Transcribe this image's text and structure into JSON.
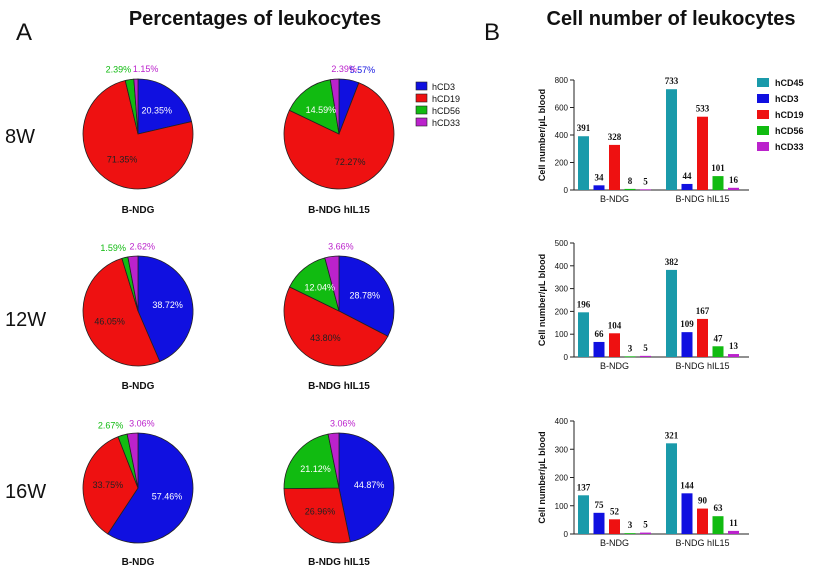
{
  "panel_a": {
    "letter": "A",
    "title": "Percentages of leukocytes",
    "time_labels": [
      "8W",
      "12W",
      "16W"
    ],
    "group_labels": [
      "B-NDG",
      "B-NDG hIL15"
    ],
    "legend": [
      {
        "name": "hCD3",
        "color": "#1010e0"
      },
      {
        "name": "hCD19",
        "color": "#ee1111"
      },
      {
        "name": "hCD56",
        "color": "#11bb11"
      },
      {
        "name": "hCD33",
        "color": "#bb22cc"
      }
    ]
  },
  "panel_b": {
    "letter": "B",
    "title": "Cell number of leukocytes",
    "ylabel": "Cell number/μL blood",
    "legend": [
      {
        "name": "hCD45",
        "color": "#1a9aaa"
      },
      {
        "name": "hCD3",
        "color": "#1010e0"
      },
      {
        "name": "hCD19",
        "color": "#ee1111"
      },
      {
        "name": "hCD56",
        "color": "#11bb11"
      },
      {
        "name": "hCD33",
        "color": "#bb22cc"
      }
    ]
  },
  "chart_data": [
    {
      "type": "pie",
      "title": "8W",
      "group": "B-NDG",
      "categories": [
        "hCD3",
        "hCD19",
        "hCD56",
        "hCD33"
      ],
      "values": [
        20.35,
        71.35,
        2.39,
        1.15
      ],
      "labels": [
        "20.35%",
        "71.35%",
        "2.39%",
        "1.15%"
      ]
    },
    {
      "type": "pie",
      "title": "8W",
      "group": "B-NDG hIL15",
      "categories": [
        "hCD3",
        "hCD19",
        "hCD56",
        "hCD33"
      ],
      "values": [
        5.57,
        72.27,
        14.59,
        2.39
      ],
      "labels": [
        "5.57%",
        "72.27%",
        "14.59%",
        "2.39%"
      ]
    },
    {
      "type": "pie",
      "title": "12W",
      "group": "B-NDG",
      "categories": [
        "hCD3",
        "hCD19",
        "hCD56",
        "hCD33"
      ],
      "values": [
        38.72,
        46.05,
        1.59,
        2.62
      ],
      "labels": [
        "38.72%",
        "46.05%",
        "1.59%",
        "2.62%"
      ]
    },
    {
      "type": "pie",
      "title": "12W",
      "group": "B-NDG hIL15",
      "categories": [
        "hCD3",
        "hCD19",
        "hCD56",
        "hCD33"
      ],
      "values": [
        28.78,
        43.8,
        12.04,
        3.66
      ],
      "labels": [
        "28.78%",
        "43.80%",
        "12.04%",
        "3.66%"
      ]
    },
    {
      "type": "pie",
      "title": "16W",
      "group": "B-NDG",
      "categories": [
        "hCD3",
        "hCD19",
        "hCD56",
        "hCD33"
      ],
      "values": [
        57.46,
        33.75,
        2.67,
        3.06
      ],
      "labels": [
        "57.46%",
        "33.75%",
        "2.67%",
        "3.06%"
      ]
    },
    {
      "type": "pie",
      "title": "16W",
      "group": "B-NDG hIL15",
      "categories": [
        "hCD3",
        "hCD19",
        "hCD56",
        "hCD33"
      ],
      "values": [
        44.87,
        26.96,
        21.12,
        3.06
      ],
      "labels": [
        "44.87%",
        "26.96%",
        "21.12%",
        "3.06%"
      ]
    },
    {
      "type": "bar",
      "categories": [
        "B-NDG",
        "B-NDG hIL15"
      ],
      "ylabel": "Cell number/μL blood",
      "ylim": [
        0,
        800
      ],
      "yticks": [
        0,
        200,
        400,
        600,
        800
      ],
      "series": [
        {
          "name": "hCD45",
          "values": [
            391,
            733
          ]
        },
        {
          "name": "hCD3",
          "values": [
            34,
            44
          ]
        },
        {
          "name": "hCD19",
          "values": [
            328,
            533
          ]
        },
        {
          "name": "hCD56",
          "values": [
            8,
            101
          ]
        },
        {
          "name": "hCD33",
          "values": [
            5,
            16
          ]
        }
      ]
    },
    {
      "type": "bar",
      "categories": [
        "B-NDG",
        "B-NDG hIL15"
      ],
      "ylabel": "Cell number/μL blood",
      "ylim": [
        0,
        500
      ],
      "yticks": [
        0,
        100,
        200,
        300,
        400,
        500
      ],
      "series": [
        {
          "name": "hCD45",
          "values": [
            196,
            382
          ]
        },
        {
          "name": "hCD3",
          "values": [
            66,
            109
          ]
        },
        {
          "name": "hCD19",
          "values": [
            104,
            167
          ]
        },
        {
          "name": "hCD56",
          "values": [
            3,
            47
          ]
        },
        {
          "name": "hCD33",
          "values": [
            5,
            13
          ]
        }
      ]
    },
    {
      "type": "bar",
      "categories": [
        "B-NDG",
        "B-NDG hIL15"
      ],
      "ylabel": "Cell number/μL blood",
      "ylim": [
        0,
        400
      ],
      "yticks": [
        0,
        100,
        200,
        300,
        400
      ],
      "series": [
        {
          "name": "hCD45",
          "values": [
            137,
            321
          ]
        },
        {
          "name": "hCD3",
          "values": [
            75,
            144
          ]
        },
        {
          "name": "hCD19",
          "values": [
            52,
            90
          ]
        },
        {
          "name": "hCD56",
          "values": [
            3,
            63
          ]
        },
        {
          "name": "hCD33",
          "values": [
            5,
            11
          ]
        }
      ]
    }
  ]
}
